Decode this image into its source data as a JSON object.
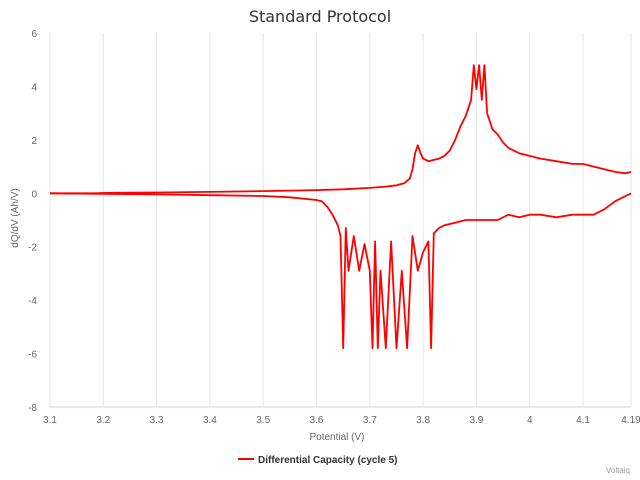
{
  "chart_data": {
    "type": "line",
    "title": "Standard Protocol",
    "xlabel": "Potential (V)",
    "ylabel": "dQ/dV (Ah/V)",
    "xlim": [
      3.1,
      4.19
    ],
    "ylim": [
      -8,
      6
    ],
    "x_ticks": [
      "3.1",
      "3.2",
      "3.3",
      "3.4",
      "3.5",
      "3.6",
      "3.7",
      "3.8",
      "3.9",
      "4",
      "4.1",
      "4.19"
    ],
    "y_ticks": [
      "6",
      "4",
      "2",
      "0",
      "-2",
      "-4",
      "-6",
      "-8"
    ],
    "x_tick_values": [
      3.1,
      3.2,
      3.3,
      3.4,
      3.5,
      3.6,
      3.7,
      3.8,
      3.9,
      4.0,
      4.1,
      4.19
    ],
    "y_tick_values": [
      6,
      4,
      2,
      0,
      -2,
      -4,
      -6,
      -8
    ],
    "grid": "vertical",
    "legend_position": "bottom-center",
    "credit": "Voltaiq",
    "color": "#ff0000",
    "series": [
      {
        "name": "Differential Capacity (cycle 5)",
        "branch": "charge",
        "x": [
          3.1,
          3.18,
          3.22,
          3.3,
          3.4,
          3.5,
          3.55,
          3.6,
          3.65,
          3.7,
          3.73,
          3.75,
          3.765,
          3.775,
          3.78,
          3.785,
          3.79,
          3.795,
          3.8,
          3.81,
          3.82,
          3.83,
          3.84,
          3.85,
          3.86,
          3.87,
          3.88,
          3.89,
          3.895,
          3.9,
          3.905,
          3.91,
          3.915,
          3.92,
          3.93,
          3.94,
          3.95,
          3.96,
          3.98,
          4.0,
          4.02,
          4.05,
          4.08,
          4.1,
          4.12,
          4.14,
          4.16,
          4.18,
          4.19
        ],
        "y": [
          0.0,
          0.0,
          0.02,
          0.03,
          0.05,
          0.08,
          0.1,
          0.12,
          0.15,
          0.2,
          0.25,
          0.3,
          0.38,
          0.55,
          0.9,
          1.5,
          1.8,
          1.5,
          1.3,
          1.2,
          1.25,
          1.3,
          1.4,
          1.6,
          2.0,
          2.5,
          2.9,
          3.5,
          4.8,
          3.9,
          4.8,
          3.5,
          4.8,
          3.0,
          2.4,
          2.2,
          1.9,
          1.7,
          1.5,
          1.4,
          1.3,
          1.2,
          1.1,
          1.1,
          1.0,
          0.9,
          0.8,
          0.75,
          0.8
        ]
      },
      {
        "name": "Differential Capacity (cycle 5)",
        "branch": "discharge",
        "x": [
          4.19,
          4.18,
          4.16,
          4.14,
          4.12,
          4.1,
          4.08,
          4.05,
          4.02,
          4.0,
          3.98,
          3.96,
          3.94,
          3.92,
          3.9,
          3.88,
          3.86,
          3.84,
          3.83,
          3.82,
          3.815,
          3.81,
          3.8,
          3.79,
          3.78,
          3.77,
          3.76,
          3.75,
          3.74,
          3.73,
          3.72,
          3.715,
          3.71,
          3.705,
          3.7,
          3.69,
          3.68,
          3.67,
          3.66,
          3.655,
          3.65,
          3.645,
          3.64,
          3.63,
          3.62,
          3.61,
          3.6,
          3.55,
          3.5,
          3.4,
          3.3,
          3.2,
          3.1
        ],
        "y": [
          0.0,
          -0.1,
          -0.3,
          -0.6,
          -0.8,
          -0.8,
          -0.8,
          -0.9,
          -0.8,
          -0.8,
          -0.9,
          -0.8,
          -1.0,
          -1.0,
          -1.0,
          -1.0,
          -1.1,
          -1.2,
          -1.3,
          -1.5,
          -5.8,
          -1.8,
          -2.2,
          -2.9,
          -1.6,
          -5.8,
          -2.9,
          -5.8,
          -1.8,
          -5.8,
          -2.9,
          -5.8,
          -1.8,
          -5.8,
          -2.9,
          -1.9,
          -2.9,
          -1.6,
          -2.9,
          -1.3,
          -5.8,
          -1.6,
          -1.2,
          -0.8,
          -0.5,
          -0.3,
          -0.25,
          -0.15,
          -0.1,
          -0.07,
          -0.04,
          -0.02,
          0.0
        ]
      }
    ]
  }
}
